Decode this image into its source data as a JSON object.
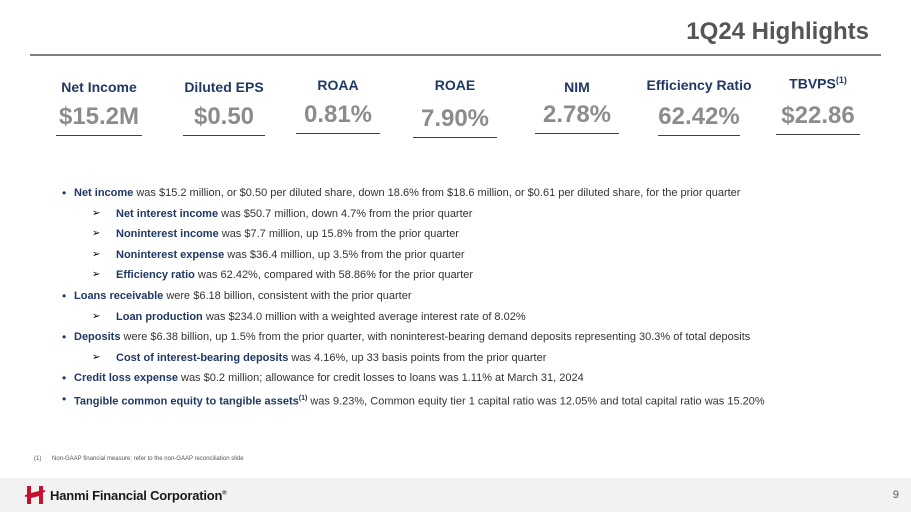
{
  "header": {
    "title": "1Q24 Highlights"
  },
  "metrics": [
    {
      "label": "Net Income",
      "value": "$15.2M",
      "sup": ""
    },
    {
      "label": "Diluted EPS",
      "value": "$0.50",
      "sup": ""
    },
    {
      "label": "ROAA",
      "value": "0.81%",
      "sup": ""
    },
    {
      "label": "ROAE",
      "value": "7.90%",
      "sup": ""
    },
    {
      "label": "NIM",
      "value": "2.78%",
      "sup": ""
    },
    {
      "label": "Efficiency Ratio",
      "value": "62.42%",
      "sup": ""
    },
    {
      "label": "TBVPS",
      "value": "$22.86",
      "sup": "(1)"
    }
  ],
  "bullets": [
    {
      "bold": "Net income",
      "text": " was $15.2 million, or $0.50 per diluted share, down 18.6% from $18.6 million, or $0.61 per diluted share, for the prior quarter"
    },
    {
      "bold": "Net interest income",
      "text": " was $50.7 million, down 4.7% from the prior quarter"
    },
    {
      "bold": "Noninterest income",
      "text": " was $7.7 million, up 15.8% from the prior quarter"
    },
    {
      "bold": "Noninterest expense",
      "text": " was $36.4 million, up 3.5% from the prior quarter"
    },
    {
      "bold": "Efficiency ratio",
      "text": " was 62.42%, compared with 58.86% for the prior quarter"
    },
    {
      "bold": "Loans receivable",
      "text": " were $6.18 billion, consistent with the prior quarter"
    },
    {
      "bold": "Loan production",
      "text": " was $234.0 million with a weighted average interest rate of 8.02%"
    },
    {
      "bold": "Deposits",
      "text": " were $6.38 billion, up 1.5% from the prior quarter, with noninterest-bearing demand deposits representing 30.3% of total deposits"
    },
    {
      "bold": "Cost of interest-bearing deposits",
      "text": " was 4.16%, up 33 basis points from the prior quarter"
    },
    {
      "bold": "Credit loss expense",
      "text": " was $0.2 million; allowance for credit losses to loans was 1.11% at March 31, 2024"
    },
    {
      "bold": "Tangible common equity to tangible assets",
      "sup": "(1)",
      "text": " was 9.23%, Common equity tier 1 capital ratio was 12.05% and total capital ratio was 15.20%"
    }
  ],
  "footnote": {
    "num": "(1)",
    "text": "Non-GAAP financial measure; refer to the non-GAAP reconciliation slide"
  },
  "footer": {
    "company": "Hanmi Financial Corporation",
    "trademark": "®",
    "page": "9"
  },
  "colors": {
    "accent": "#1f3864",
    "value_gray": "#8c8c8c",
    "logo_red": "#c8102e"
  }
}
